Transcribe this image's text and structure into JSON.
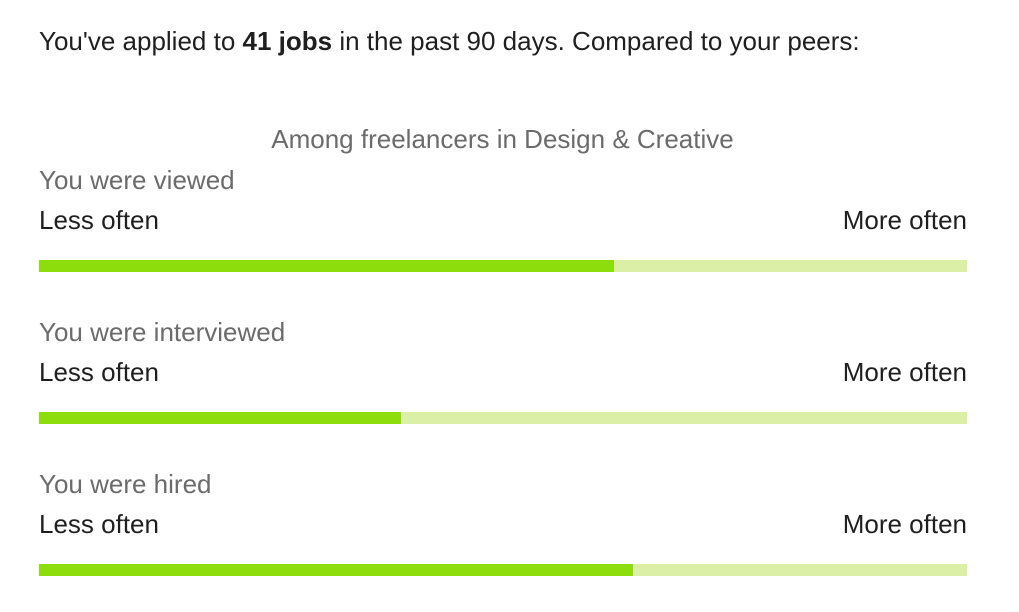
{
  "summary": {
    "prefix": "You've applied to ",
    "highlight": "41 jobs",
    "suffix": " in the past 90 days. Compared to your peers:"
  },
  "peer_group": "Among freelancers in Design & Creative",
  "scale": {
    "min_label": "Less often",
    "max_label": "More often"
  },
  "colors": {
    "fill": "#8ddc0c",
    "track": "#dcefa6"
  },
  "metrics": [
    {
      "title": "You were viewed",
      "fraction": 0.62
    },
    {
      "title": "You were interviewed",
      "fraction": 0.39
    },
    {
      "title": "You were hired",
      "fraction": 0.64
    }
  ]
}
